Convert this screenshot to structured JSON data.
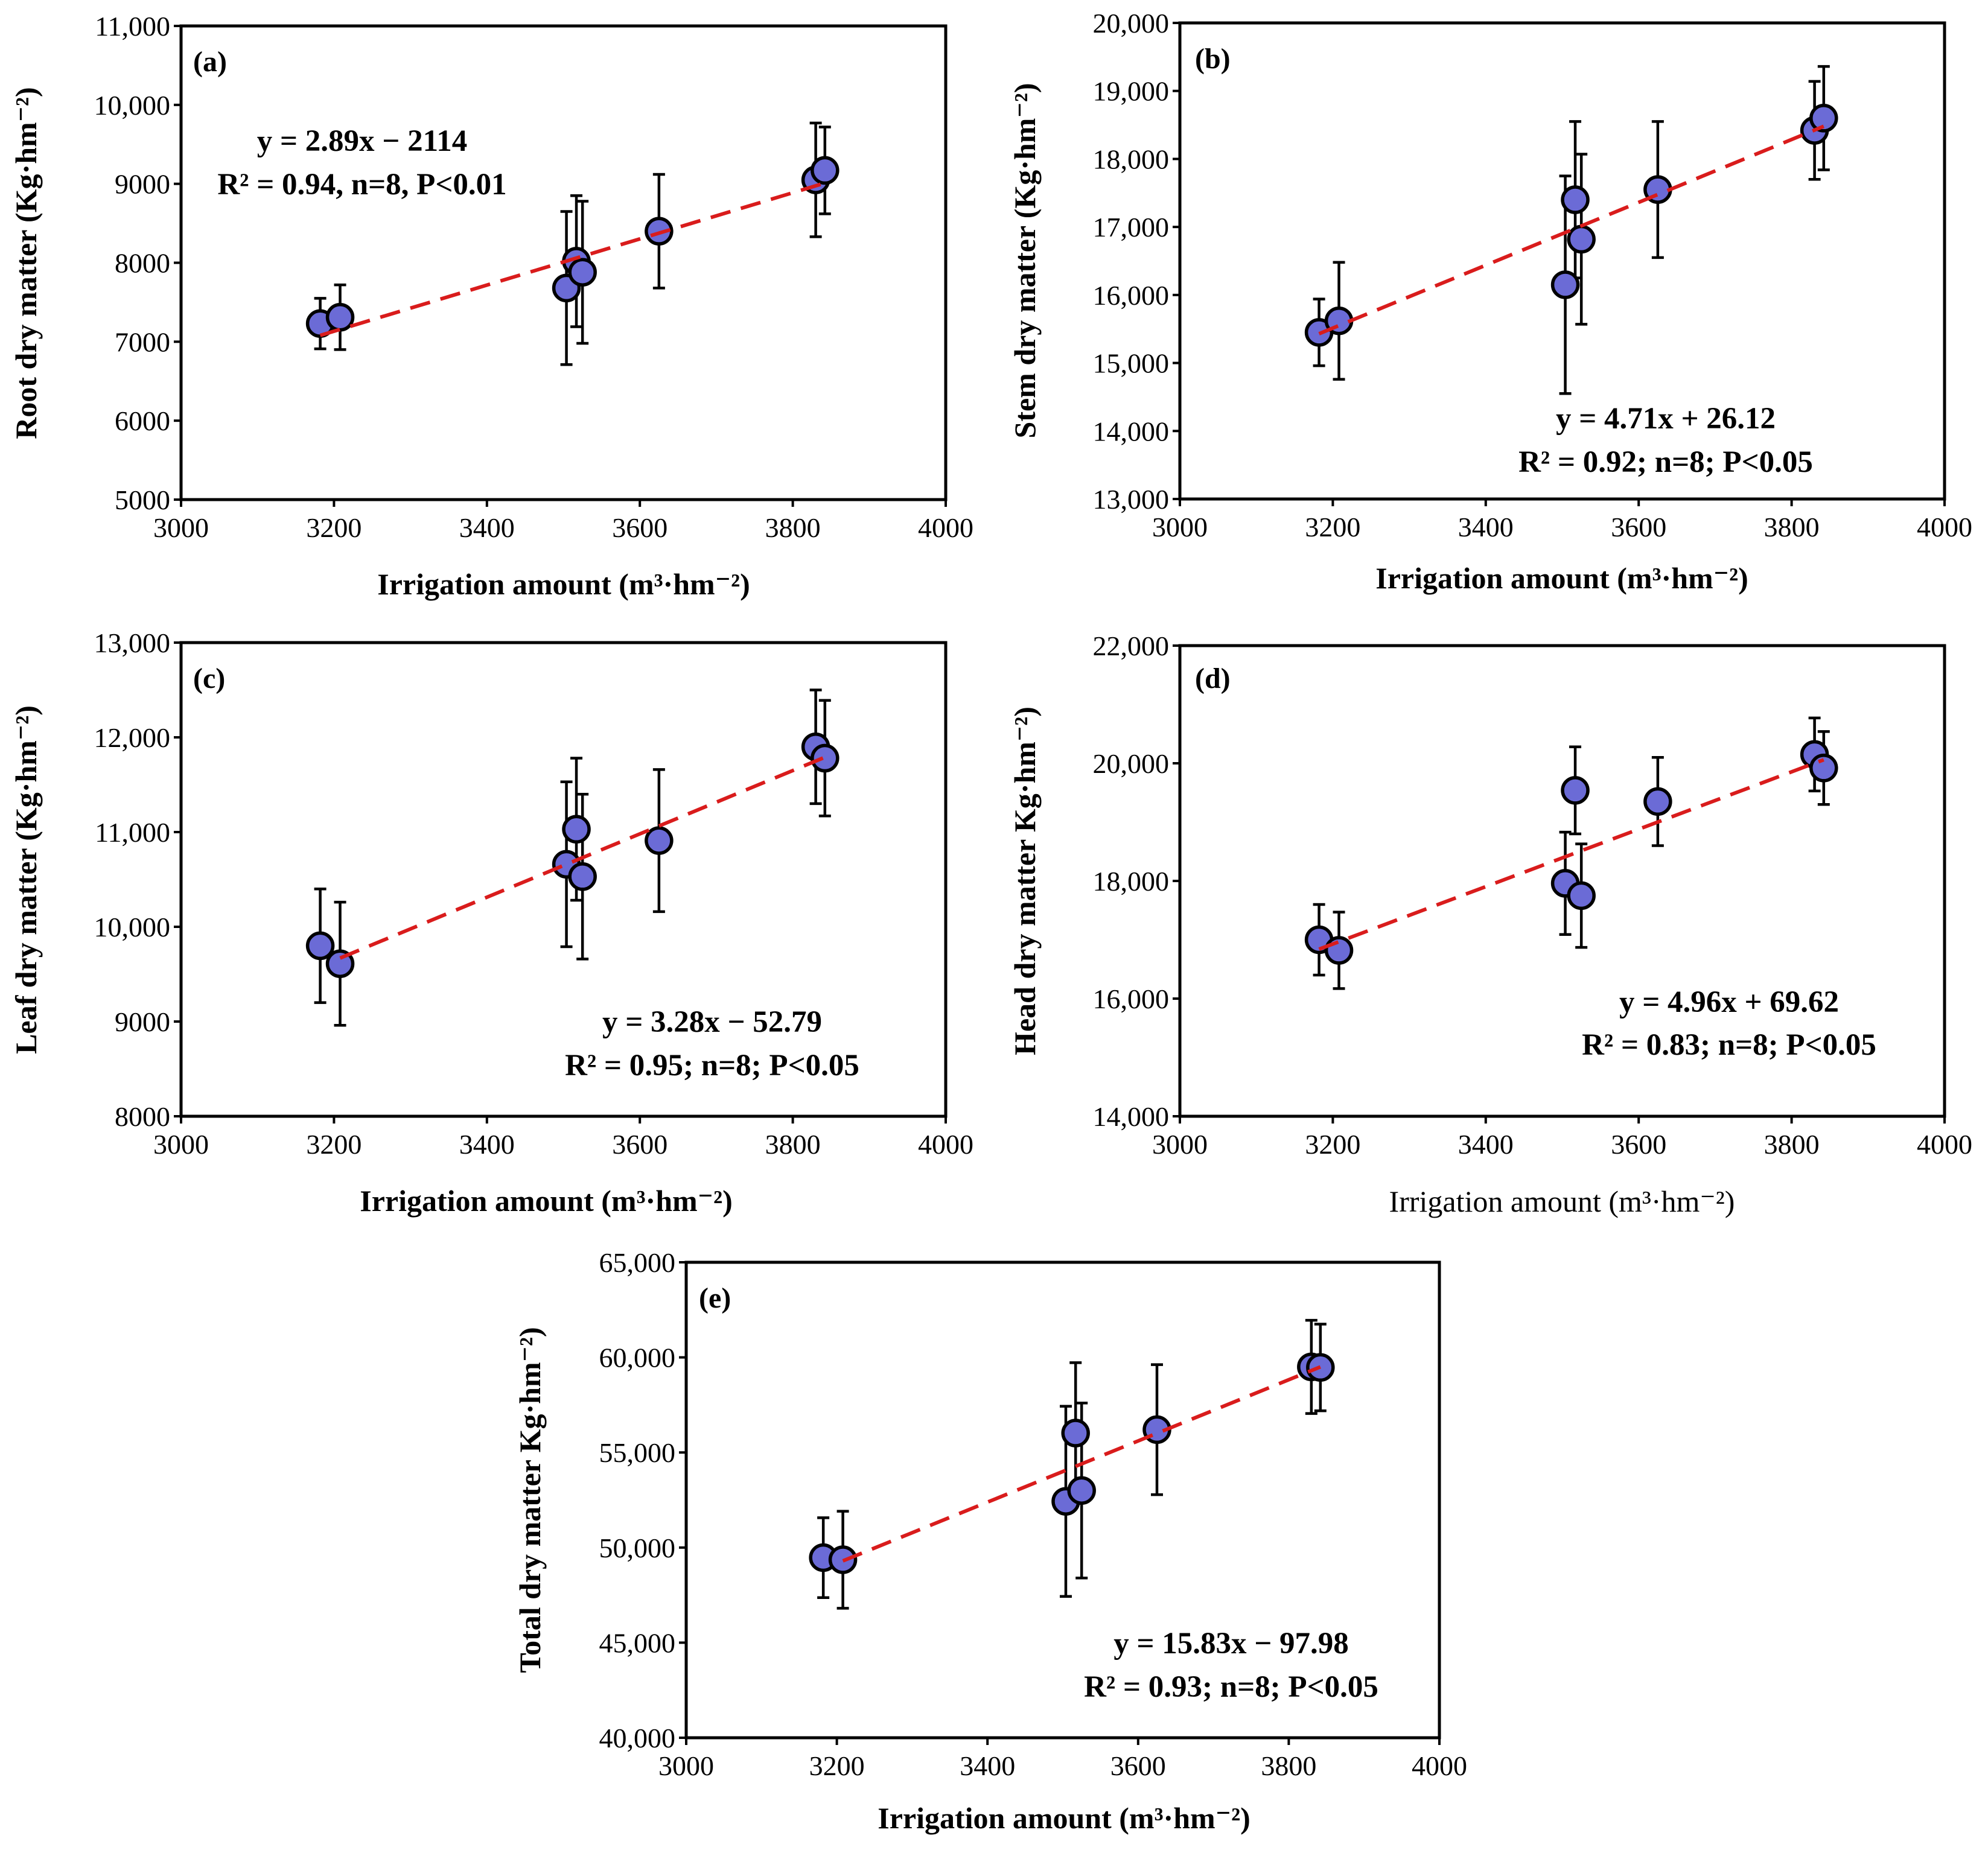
{
  "chart_data": [
    {
      "id": "a",
      "type": "scatter",
      "panel_label": "(a)",
      "xlabel": "Irrigation amount (m³·hm⁻²)",
      "ylabel": "Root dry matter (Kg·hm⁻²)",
      "xlim": [
        3000,
        4000
      ],
      "ylim": [
        5000,
        11000
      ],
      "xticks": [
        "3000",
        "3200",
        "3400",
        "3600",
        "3800",
        "4000"
      ],
      "yticks": [
        "5000",
        "6000",
        "7000",
        "8000",
        "9000",
        "10,000",
        "11,000"
      ],
      "points": [
        {
          "x": 3182,
          "y": 7230,
          "err": 320
        },
        {
          "x": 3208,
          "y": 7310,
          "err": 410
        },
        {
          "x": 3504,
          "y": 7680,
          "err": 970
        },
        {
          "x": 3517,
          "y": 8020,
          "err": 830
        },
        {
          "x": 3525,
          "y": 7880,
          "err": 900
        },
        {
          "x": 3625,
          "y": 8400,
          "err": 720
        },
        {
          "x": 3830,
          "y": 9050,
          "err": 720
        },
        {
          "x": 3842,
          "y": 9170,
          "err": 550
        }
      ],
      "trendline": {
        "x": [
          3182,
          3842
        ],
        "y": [
          7080,
          9010
        ]
      },
      "equation": "y = 2.89x − 2114",
      "stats": "R² = 0.94, n=8, P<0.01"
    },
    {
      "id": "b",
      "type": "scatter",
      "panel_label": "(b)",
      "xlabel": "Irrigation amount (m³·hm⁻²)",
      "ylabel": "Stem dry matter (Kg·hm⁻²)",
      "xlim": [
        3000,
        4000
      ],
      "ylim": [
        13000,
        20000
      ],
      "xticks": [
        "3000",
        "3200",
        "3400",
        "3600",
        "3800",
        "4000"
      ],
      "yticks": [
        "13,000",
        "14,000",
        "15,000",
        "16,000",
        "17,000",
        "18,000",
        "19,000",
        "20,000"
      ],
      "points": [
        {
          "x": 3182,
          "y": 15450,
          "err": 490
        },
        {
          "x": 3208,
          "y": 15620,
          "err": 860
        },
        {
          "x": 3504,
          "y": 16150,
          "err": 1600
        },
        {
          "x": 3517,
          "y": 17400,
          "err": 1150
        },
        {
          "x": 3525,
          "y": 16820,
          "err": 1250
        },
        {
          "x": 3625,
          "y": 17550,
          "err": 1000
        },
        {
          "x": 3830,
          "y": 18420,
          "err": 720
        },
        {
          "x": 3842,
          "y": 18600,
          "err": 760
        }
      ],
      "trendline": {
        "x": [
          3182,
          3842
        ],
        "y": [
          15430,
          18480
        ]
      },
      "equation": "y = 4.71x + 26.12",
      "stats": "R² = 0.92; n=8; P<0.05"
    },
    {
      "id": "c",
      "type": "scatter",
      "panel_label": "(c)",
      "xlabel": "Irrigation amount (m³·hm⁻²)",
      "ylabel": "Leaf dry matter (Kg·hm⁻²)",
      "xlim": [
        3000,
        4000
      ],
      "ylim": [
        8000,
        13000
      ],
      "xticks": [
        "3000",
        "3200",
        "3400",
        "3600",
        "3800",
        "4000"
      ],
      "yticks": [
        "8000",
        "9000",
        "10,000",
        "11,000",
        "12,000",
        "13,000"
      ],
      "points": [
        {
          "x": 3182,
          "y": 9800,
          "err": 600
        },
        {
          "x": 3208,
          "y": 9610,
          "err": 650
        },
        {
          "x": 3504,
          "y": 10660,
          "err": 870
        },
        {
          "x": 3517,
          "y": 11030,
          "err": 750
        },
        {
          "x": 3525,
          "y": 10530,
          "err": 870
        },
        {
          "x": 3625,
          "y": 10910,
          "err": 750
        },
        {
          "x": 3830,
          "y": 11900,
          "err": 600
        },
        {
          "x": 3842,
          "y": 11780,
          "err": 610
        }
      ],
      "trendline": {
        "x": [
          3208,
          3842
        ],
        "y": [
          9670,
          11790
        ]
      },
      "equation": "y = 3.28x − 52.79",
      "stats": "R² = 0.95; n=8; P<0.05"
    },
    {
      "id": "d",
      "type": "scatter",
      "panel_label": "(d)",
      "xlabel": "Irrigation amount (m³·hm⁻²)",
      "ylabel": "Head dry matter Kg·hm⁻²)",
      "xlim": [
        3000,
        4000
      ],
      "ylim": [
        14000,
        22000
      ],
      "xticks": [
        "3000",
        "3200",
        "3400",
        "3600",
        "3800",
        "4000"
      ],
      "yticks": [
        "14,000",
        "16,000",
        "18,000",
        "20,000",
        "22,000"
      ],
      "points": [
        {
          "x": 3182,
          "y": 17000,
          "err": 600
        },
        {
          "x": 3208,
          "y": 16820,
          "err": 650
        },
        {
          "x": 3504,
          "y": 17960,
          "err": 870
        },
        {
          "x": 3517,
          "y": 19540,
          "err": 740
        },
        {
          "x": 3525,
          "y": 17750,
          "err": 880
        },
        {
          "x": 3625,
          "y": 19350,
          "err": 750
        },
        {
          "x": 3830,
          "y": 20150,
          "err": 620
        },
        {
          "x": 3842,
          "y": 19920,
          "err": 620
        }
      ],
      "trendline": {
        "x": [
          3182,
          3842
        ],
        "y": [
          16840,
          20060
        ]
      },
      "equation": "y = 4.96x + 69.62",
      "stats": "R² = 0.83; n=8; P<0.05"
    },
    {
      "id": "e",
      "type": "scatter",
      "panel_label": "(e)",
      "xlabel": "Irrigation amount (m³·hm⁻²)",
      "ylabel": "Total dry matter Kg·hm⁻²)",
      "xlim": [
        3000,
        4000
      ],
      "ylim": [
        40000,
        65000
      ],
      "xticks": [
        "3000",
        "3200",
        "3400",
        "3600",
        "3800",
        "4000"
      ],
      "yticks": [
        "40,000",
        "45,000",
        "50,000",
        "55,000",
        "60,000",
        "65,000"
      ],
      "points": [
        {
          "x": 3182,
          "y": 49470,
          "err": 2100
        },
        {
          "x": 3208,
          "y": 49360,
          "err": 2550
        },
        {
          "x": 3504,
          "y": 52430,
          "err": 5000
        },
        {
          "x": 3517,
          "y": 56020,
          "err": 3700
        },
        {
          "x": 3525,
          "y": 53000,
          "err": 4600
        },
        {
          "x": 3625,
          "y": 56200,
          "err": 3420
        },
        {
          "x": 3830,
          "y": 59500,
          "err": 2450
        },
        {
          "x": 3842,
          "y": 59470,
          "err": 2280
        }
      ],
      "trendline": {
        "x": [
          3208,
          3842
        ],
        "y": [
          49300,
          59500
        ]
      },
      "equation": "y = 15.83x − 97.98",
      "stats": "R² = 0.93; n=8; P<0.05"
    }
  ],
  "colors": {
    "marker_fill": "#6b6bd6",
    "marker_edge": "#000000",
    "trendline": "#d91c1c",
    "axis": "#000000",
    "background": "#ffffff"
  }
}
